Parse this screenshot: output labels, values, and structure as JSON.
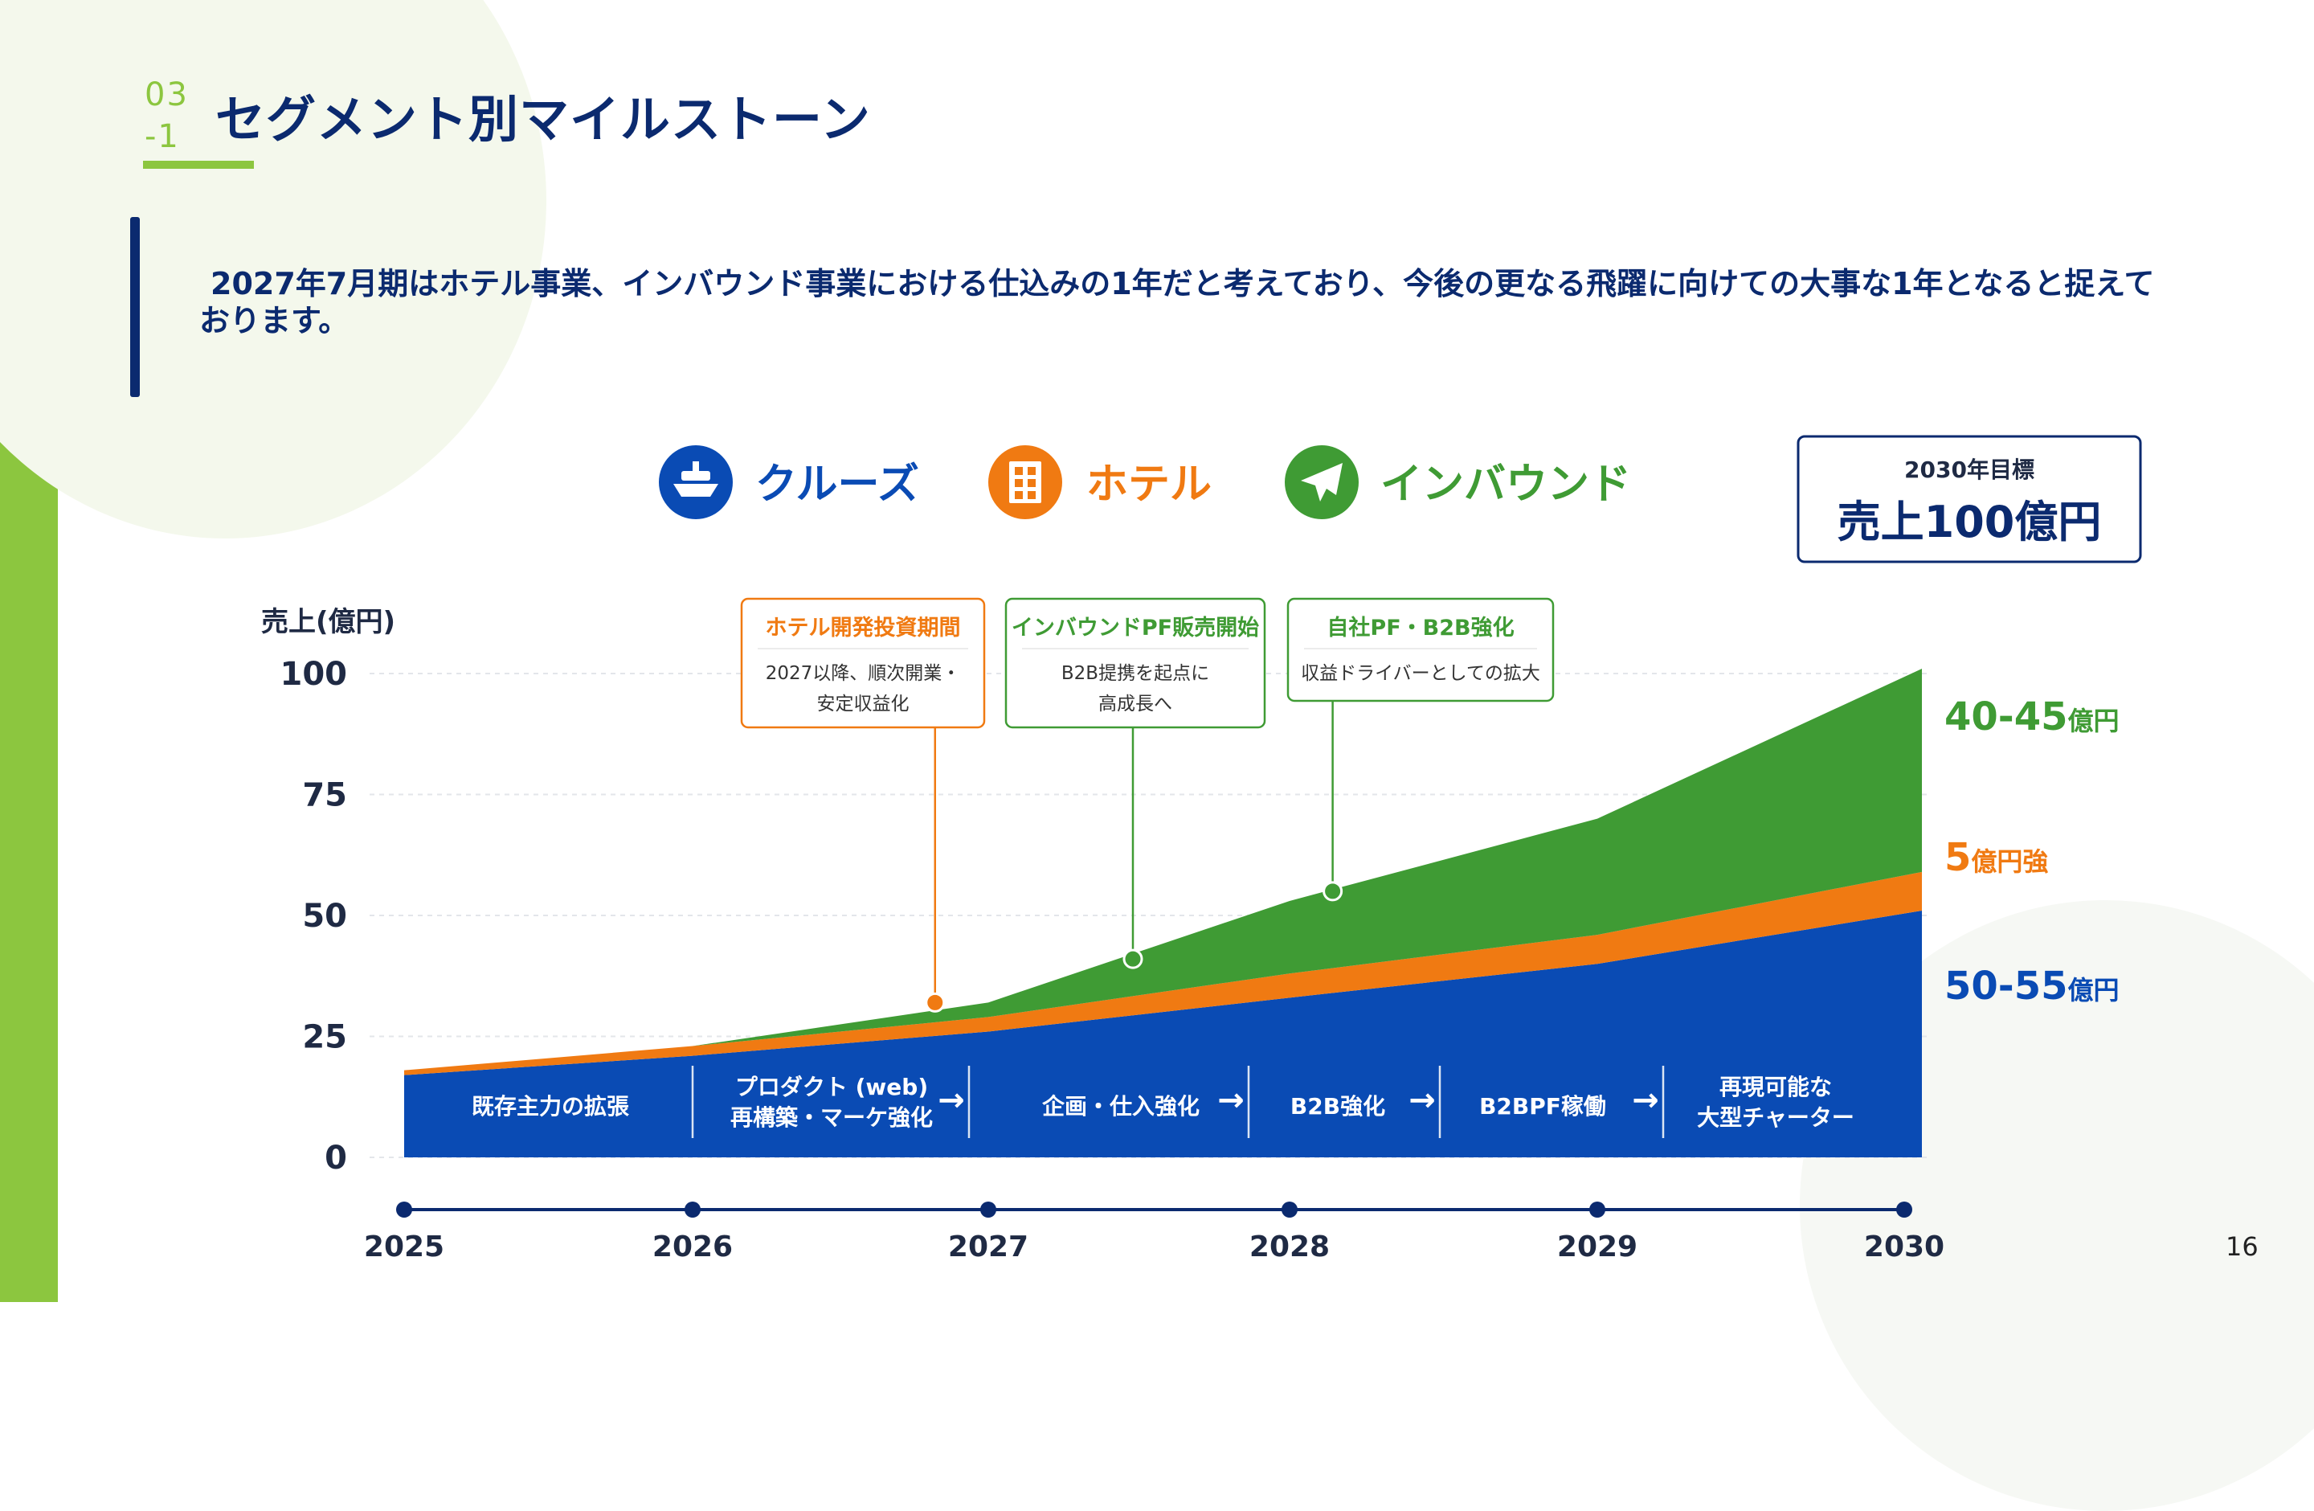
{
  "header": {
    "section_number": "03",
    "section_sub": "-1",
    "title": "セグメント別マイルストーン"
  },
  "intro_text_line1": "2027年7月期はホテル事業、インバウンド事業における仕込みの1年だと考えており、今後の更なる飛躍に向けての大事な1年となると捉えて",
  "intro_text_line2": "おります。",
  "page_number": "16",
  "legend": [
    {
      "icon": "ship-icon",
      "label": "クルーズ",
      "color": "#0a4bb4"
    },
    {
      "icon": "building-icon",
      "label": "ホテル",
      "color": "#f07a12"
    },
    {
      "icon": "airplane-icon",
      "label": "インバウンド",
      "color": "#3f9b34"
    }
  ],
  "target_box": {
    "label": "2030年目標",
    "value": "売上100億円"
  },
  "colors": {
    "navy": "#0b2a6f",
    "cruise": "#0a4bb4",
    "hotel": "#f07a12",
    "inbound": "#3f9b34",
    "accent_green": "#8cc63f"
  },
  "chart_data": {
    "type": "area",
    "stacked": true,
    "ylabel": "売上(億円)",
    "ylim": [
      0,
      100
    ],
    "yticks": [
      "100",
      "75",
      "50",
      "25",
      "0"
    ],
    "x": [
      "2025",
      "2026",
      "2027",
      "2028",
      "2029",
      "2030"
    ],
    "series": [
      {
        "name": "クルーズ",
        "color": "#0a4bb4",
        "values": [
          17,
          21,
          26,
          33,
          40,
          51
        ]
      },
      {
        "name": "ホテル",
        "color": "#f07a12",
        "values": [
          1,
          2,
          3,
          5,
          6,
          8
        ]
      },
      {
        "name": "インバウンド",
        "color": "#3f9b34",
        "values": [
          0,
          0,
          3,
          15,
          24,
          42
        ]
      }
    ],
    "end_labels": [
      {
        "num": "40-45",
        "unit": "億円",
        "color": "#3f9b34"
      },
      {
        "num": "5",
        "unit": "億円強",
        "color": "#f07a12"
      },
      {
        "num": "50-55",
        "unit": "億円",
        "color": "#0a4bb4"
      }
    ],
    "callouts": [
      {
        "title": "ホテル開発投資期間",
        "lines": [
          "2027以降、順次開業・",
          "安定収益化"
        ],
        "color": "#f07a12",
        "x": 2026.82,
        "y": 32
      },
      {
        "title": "インバウンドPF販売開始",
        "lines": [
          "B2B提携を起点に",
          "高成長へ"
        ],
        "color": "#3f9b34",
        "x": 2027.48,
        "y": 41
      },
      {
        "title": "自社PF・B2B強化",
        "lines": [
          "収益ドライバーとしての拡大"
        ],
        "color": "#3f9b34",
        "x": 2028.14,
        "y": 55
      }
    ],
    "phases": [
      {
        "lines": [
          "既存主力の拡張"
        ]
      },
      {
        "lines": [
          "プロダクト (web)",
          "再構築・マーケ強化"
        ]
      },
      {
        "lines": [
          "企画・仕入強化"
        ]
      },
      {
        "lines": [
          "B2B強化"
        ]
      },
      {
        "lines": [
          "B2BPF稼働"
        ]
      },
      {
        "lines": [
          "再現可能な",
          "大型チャーター"
        ]
      }
    ]
  }
}
